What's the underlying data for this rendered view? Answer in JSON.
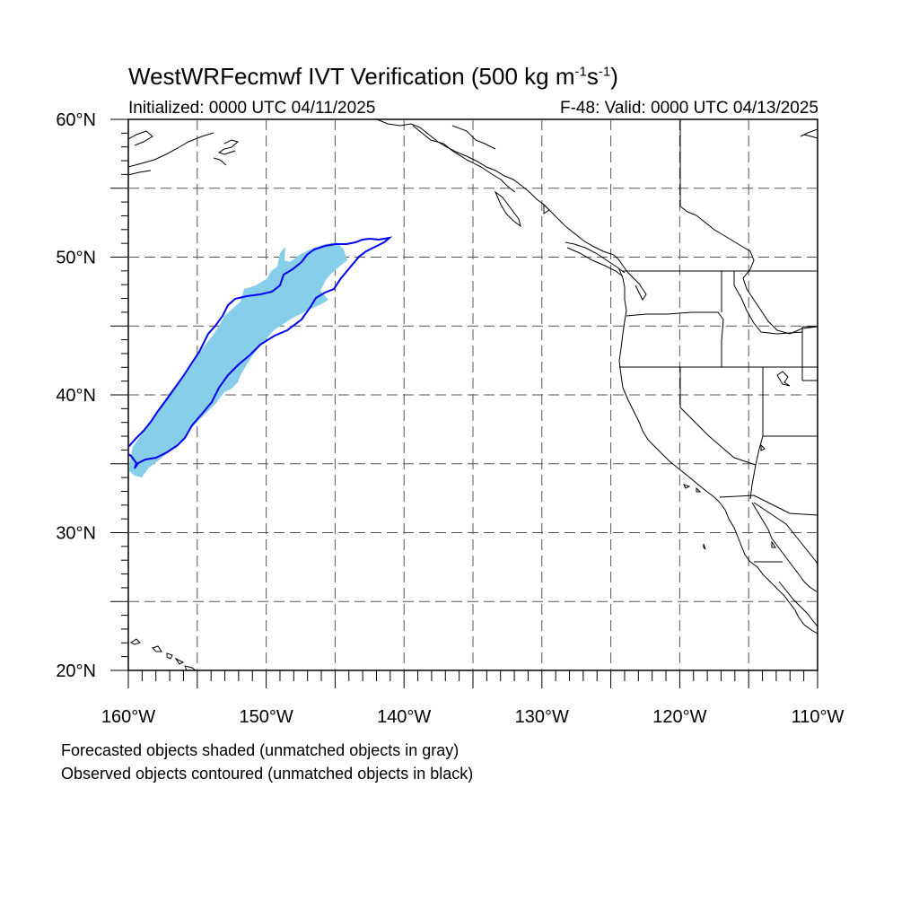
{
  "title": {
    "main": "WestWRFecmwf IVT Verification (500 kg m",
    "sup1": "-1",
    "mid": "s",
    "sup2": "-1",
    "end": ")"
  },
  "initialized": "Initialized: 0000 UTC 04/11/2025",
  "valid": "F-48: Valid: 0000 UTC 04/13/2025",
  "lat_labels": [
    "60°N",
    "50°N",
    "40°N",
    "30°N",
    "20°N"
  ],
  "lon_labels": [
    "160°W",
    "150°W",
    "140°W",
    "130°W",
    "120°W",
    "110°W"
  ],
  "footnote": {
    "line1": "Forecasted objects shaded (unmatched objects in gray)",
    "line2": "Observed objects contoured (unmatched objects in black)"
  },
  "map": {
    "lon_range": [
      -160,
      -110
    ],
    "lat_range": [
      20,
      60
    ],
    "grid_interval_deg": 5,
    "colors": {
      "forecast_shade": "#87CEEB",
      "observed_contour": "#0000EE",
      "coast": "#000000",
      "grid": "#555555"
    }
  }
}
